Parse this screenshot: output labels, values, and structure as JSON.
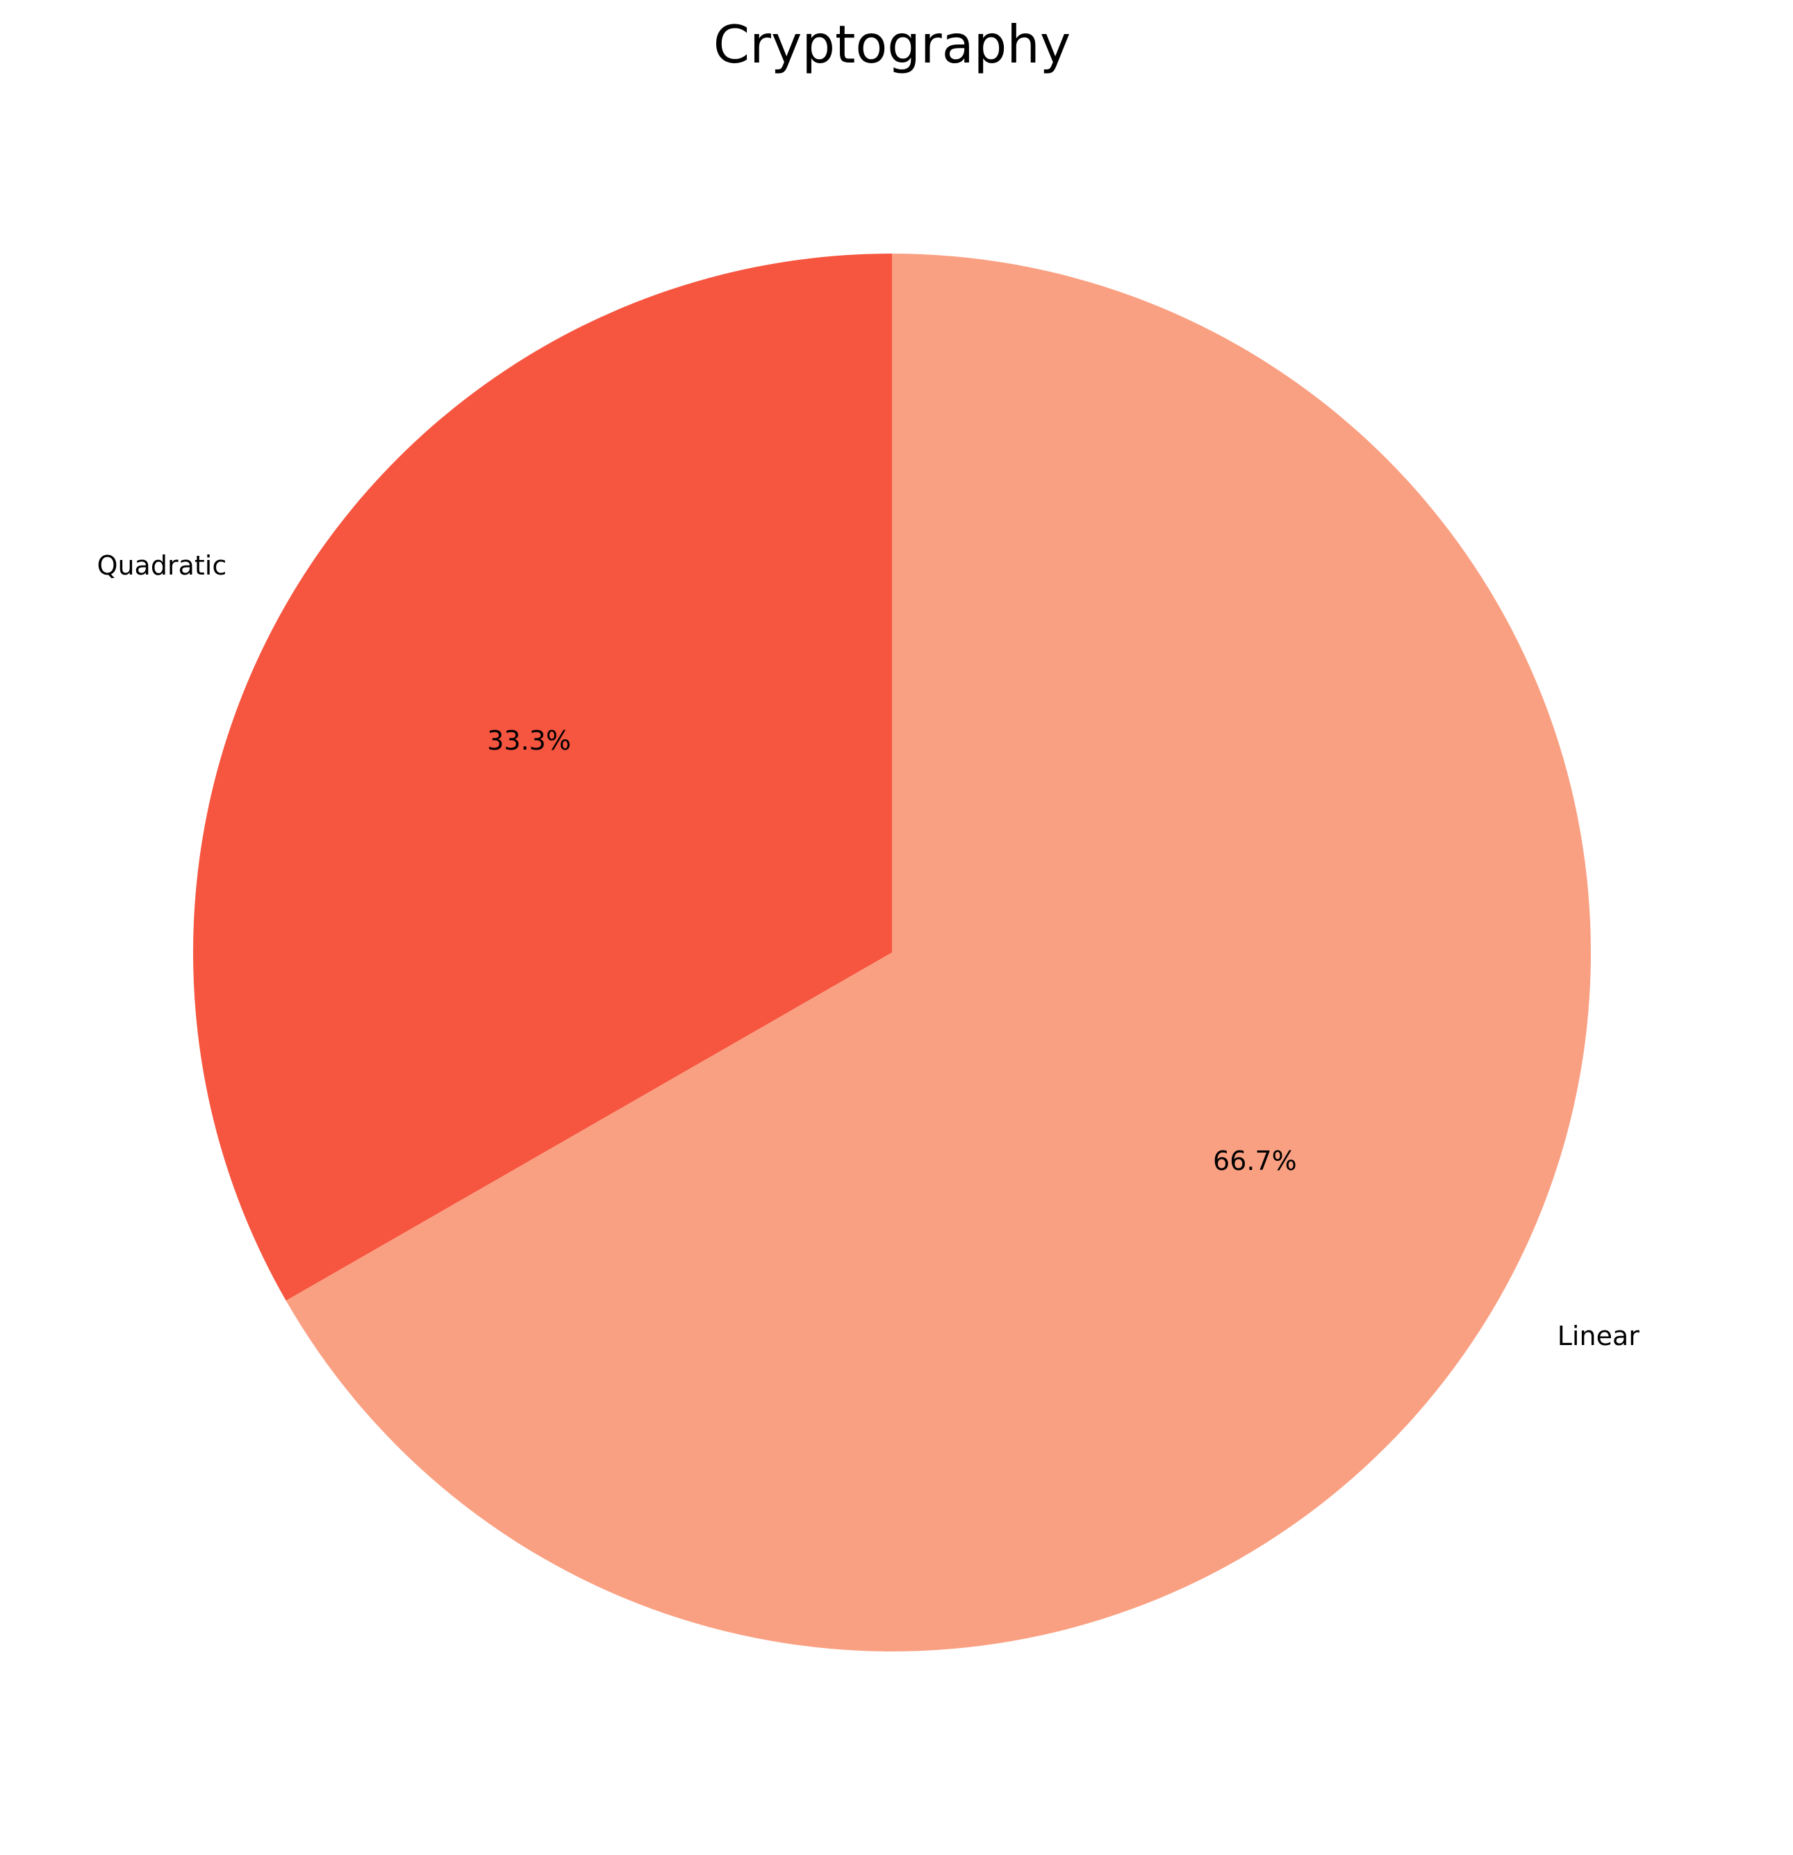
{
  "chart_data": {
    "type": "pie",
    "title": "Cryptography",
    "slices": [
      {
        "label": "Quadratic",
        "value": 33.3,
        "pct_label": "33.3%",
        "color": "#f6553f"
      },
      {
        "label": "Linear",
        "value": 66.7,
        "pct_label": "66.7%",
        "color": "#faa082"
      }
    ],
    "start_angle_deg": 90,
    "direction": "counterclockwise",
    "legend": "none"
  }
}
